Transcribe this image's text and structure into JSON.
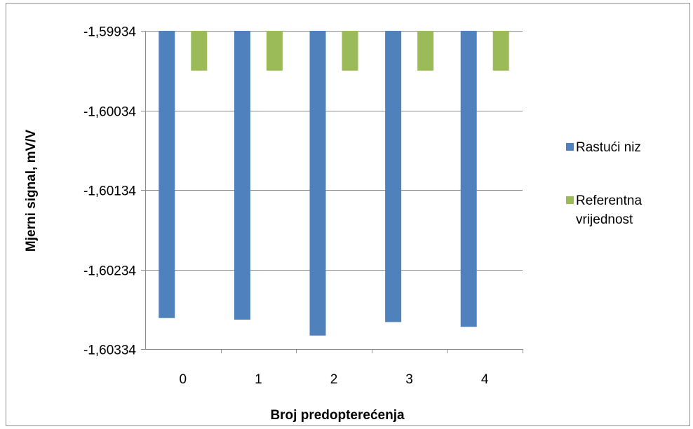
{
  "chart_data": {
    "type": "bar",
    "title": "",
    "xlabel": "Broj predopterećenja",
    "ylabel": "Mjerni signal, mV/V",
    "categories": [
      "0",
      "1",
      "2",
      "3",
      "4"
    ],
    "y_ticks": [
      "-1,59934",
      "-1,60034",
      "-1,60134",
      "-1,60234",
      "-1,60334"
    ],
    "y_tick_values": [
      -1.59934,
      -1.60034,
      -1.60134,
      -1.60234,
      -1.60334
    ],
    "ylim": [
      -1.60334,
      -1.59934
    ],
    "y_axis_reversed": true,
    "grid": true,
    "legend_position": "right",
    "legend": [
      "Rastući niz",
      "Referentna vrijednost"
    ],
    "series": [
      {
        "name": "Rastući niz",
        "color": "#4f81bd",
        "values": [
          -1.60295,
          -1.60297,
          -1.60317,
          -1.603,
          -1.60306
        ]
      },
      {
        "name": "Referentna vrijednost",
        "color": "#9bbb59",
        "values": [
          -1.59984,
          -1.59984,
          -1.59984,
          -1.59984,
          -1.59984
        ]
      }
    ]
  }
}
